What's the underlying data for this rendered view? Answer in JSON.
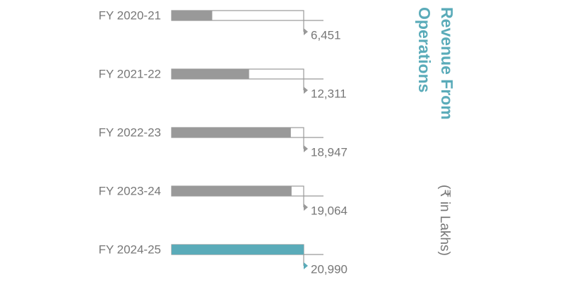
{
  "chart_data": {
    "type": "bar",
    "orientation": "horizontal",
    "title": "Revenue From Operations",
    "subtitle": "(₹ in Lakhs)",
    "categories": [
      "FY 2020-21",
      "FY 2021-22",
      "FY 2022-23",
      "FY 2023-24",
      "FY 2024-25"
    ],
    "values": [
      6451,
      12311,
      18947,
      19064,
      20990
    ],
    "value_labels": [
      "6,451",
      "12,311",
      "18,947",
      "19,064",
      "20,990"
    ],
    "colors": [
      "#999999",
      "#999999",
      "#999999",
      "#999999",
      "#5aabb9"
    ],
    "title_color": "#5aabb9"
  }
}
